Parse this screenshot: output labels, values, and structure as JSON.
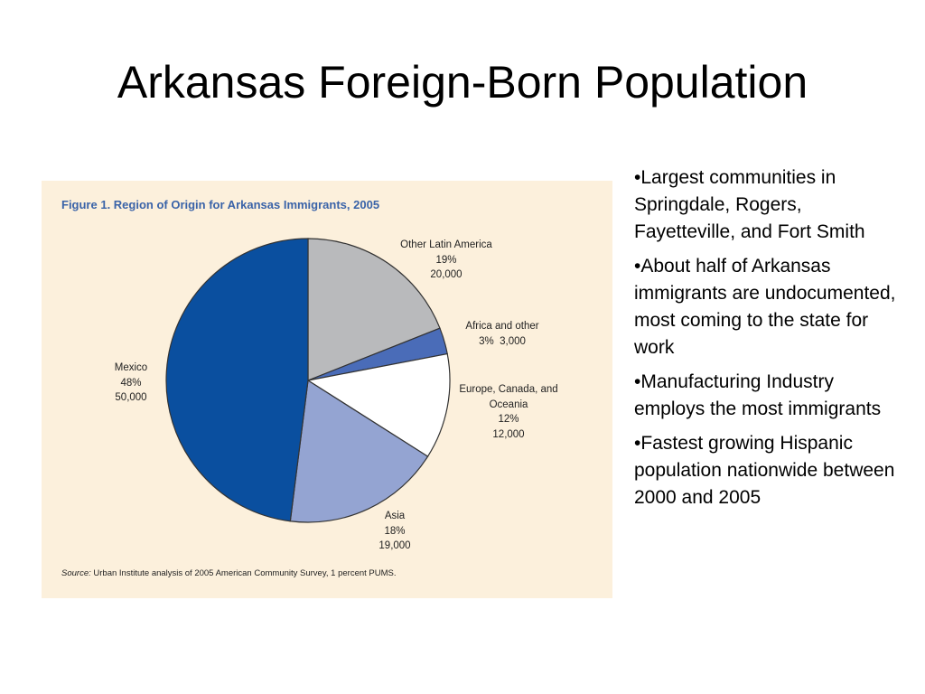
{
  "slide": {
    "title": "Arkansas Foreign-Born Population",
    "bullets": [
      "•Largest communities in Springdale, Rogers, Fayetteville, and Fort Smith",
      "•About half of Arkansas immigrants are undocumented, most coming to the state for work",
      "•Manufacturing Industry employs the most immigrants",
      "•Fastest growing Hispanic population nationwide between 2000 and 2005"
    ]
  },
  "chart_data": {
    "type": "pie",
    "title": "Figure 1.  Region of Origin for Arkansas Immigrants, 2005",
    "categories": [
      "Other Latin America",
      "Africa and other",
      "Europe, Canada, and Oceania",
      "Asia",
      "Mexico"
    ],
    "values": [
      19,
      3,
      12,
      18,
      48
    ],
    "value_labels": [
      "19%",
      "3%",
      "12%",
      "18%",
      "48%"
    ],
    "counts": [
      20000,
      3000,
      12000,
      19000,
      50000
    ],
    "count_labels": [
      "20,000",
      "3,000",
      "12,000",
      "19,000",
      "50,000"
    ],
    "colors": [
      "#b9babc",
      "#4a6cb8",
      "#ffffff",
      "#94a4d2",
      "#0a4f9f"
    ],
    "source_label": "Source:",
    "source": "Urban Institute analysis of 2005 American Community Survey, 1 percent PUMS."
  }
}
